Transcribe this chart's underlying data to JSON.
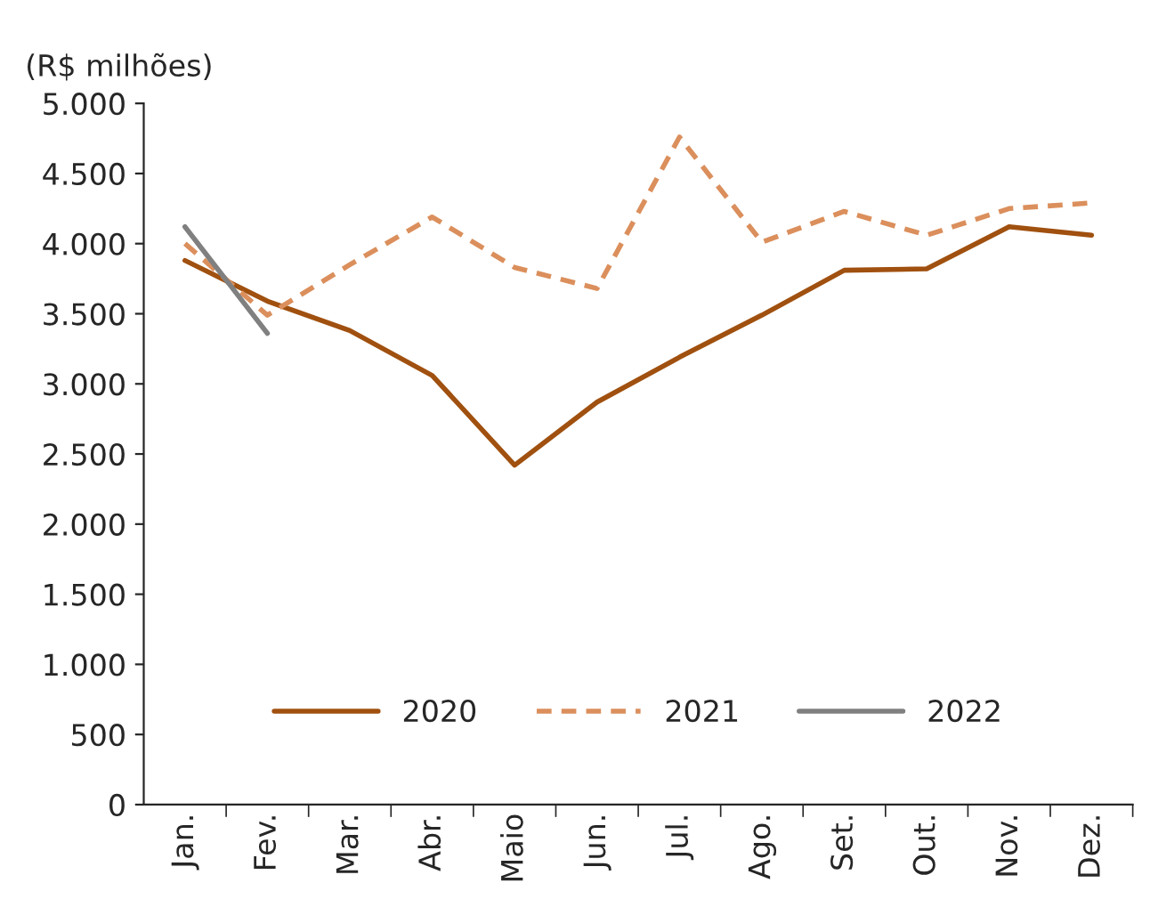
{
  "chart_data": {
    "type": "line",
    "ylabel": "(R$ milhões)",
    "categories": [
      "Jan.",
      "Fev.",
      "Mar.",
      "Abr.",
      "Maio",
      "Jun.",
      "Jul.",
      "Ago.",
      "Set.",
      "Out.",
      "Nov.",
      "Dez."
    ],
    "series": [
      {
        "name": "2020",
        "color": "#a0500f",
        "line_style": "solid",
        "values": [
          3880,
          3590,
          3380,
          3060,
          2420,
          2870,
          3190,
          3490,
          3810,
          3820,
          4120,
          4060
        ]
      },
      {
        "name": "2021",
        "color": "#db8f5c",
        "line_style": "dashed",
        "values": [
          4000,
          3490,
          3850,
          4190,
          3830,
          3680,
          4760,
          4010,
          4230,
          4060,
          4250,
          4290
        ]
      },
      {
        "name": "2022",
        "color": "#808080",
        "line_style": "solid",
        "values": [
          4120,
          3360,
          null,
          null,
          null,
          null,
          null,
          null,
          null,
          null,
          null,
          null
        ]
      }
    ],
    "ylim": [
      0,
      5000
    ],
    "yticks": [
      {
        "value": 0,
        "label": "0"
      },
      {
        "value": 500,
        "label": "500"
      },
      {
        "value": 1000,
        "label": "1.000"
      },
      {
        "value": 1500,
        "label": "1.500"
      },
      {
        "value": 2000,
        "label": "2.000"
      },
      {
        "value": 2500,
        "label": "2.500"
      },
      {
        "value": 3000,
        "label": "3.000"
      },
      {
        "value": 3500,
        "label": "3.500"
      },
      {
        "value": 4000,
        "label": "4.000"
      },
      {
        "value": 4500,
        "label": "4.500"
      },
      {
        "value": 5000,
        "label": "5.000"
      }
    ],
    "grid": false,
    "legend": "bottom"
  }
}
